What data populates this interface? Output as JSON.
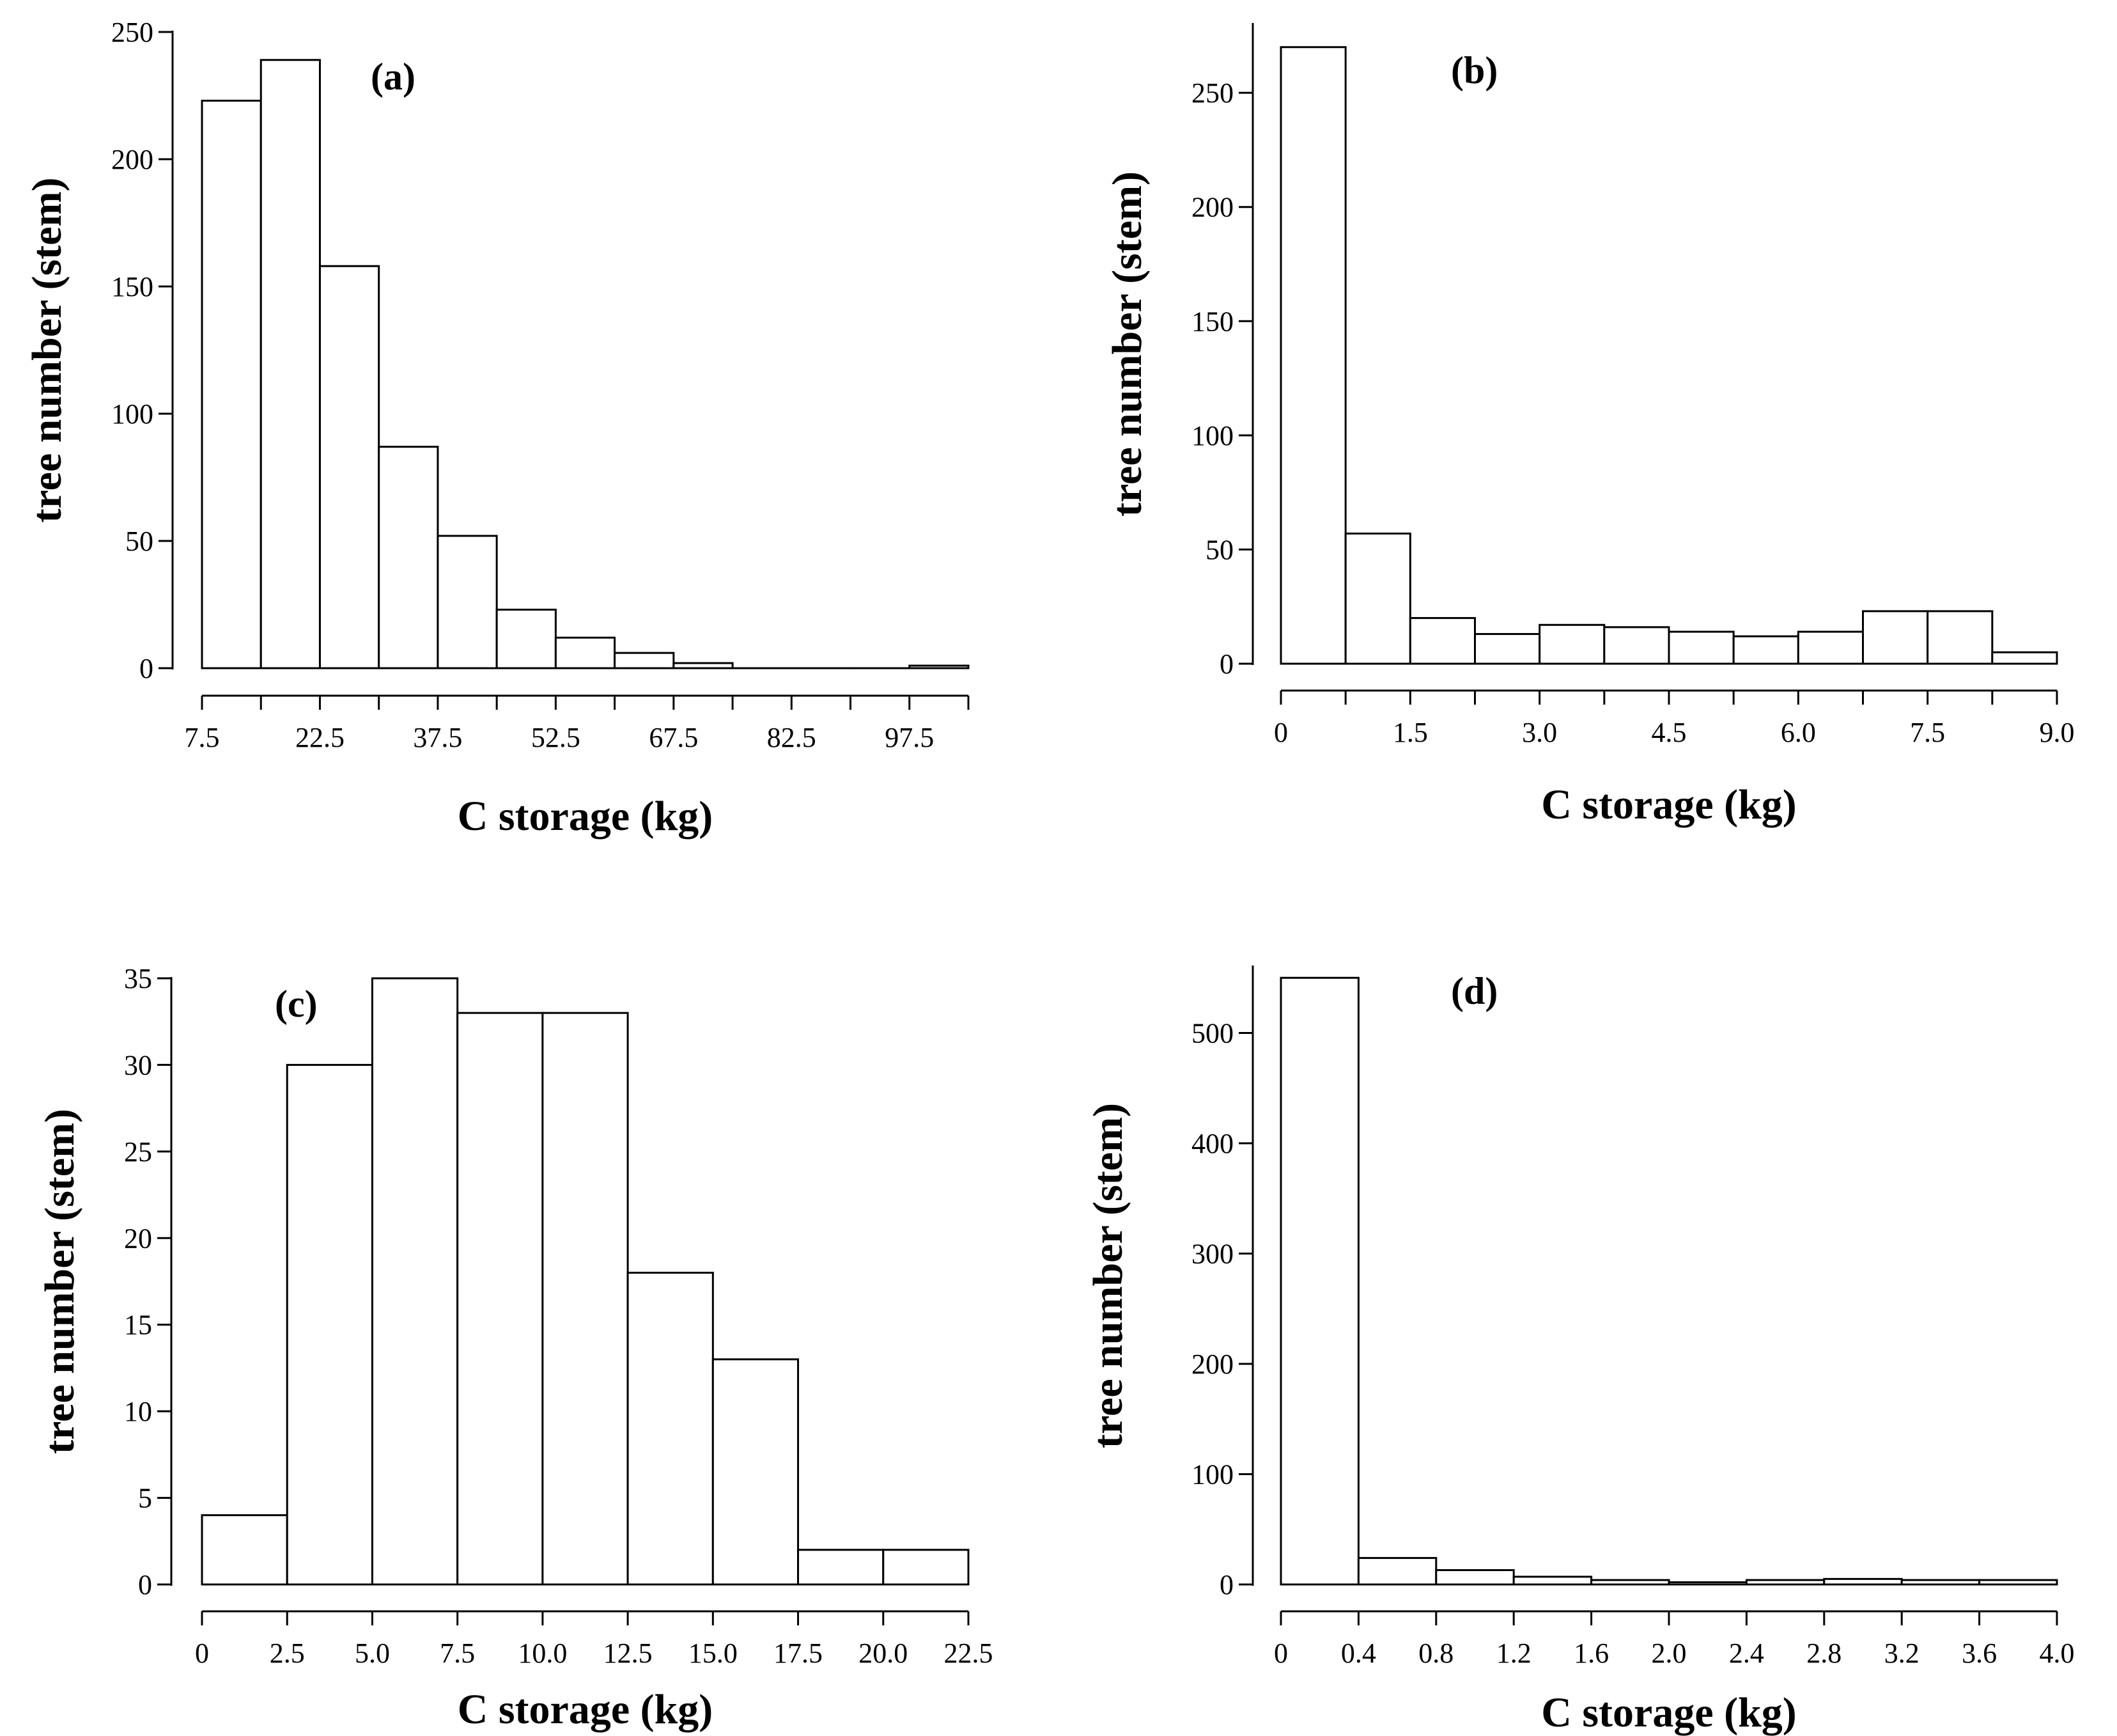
{
  "chart_data": [
    {
      "type": "bar",
      "panel_label": "(a)",
      "xlabel": "C storage (kg)",
      "ylabel": "tree number (stem)",
      "bin_edges": [
        7.5,
        15,
        22.5,
        30,
        37.5,
        45,
        52.5,
        60,
        67.5,
        75,
        82.5,
        90,
        97.5,
        105
      ],
      "values": [
        223,
        239,
        158,
        87,
        52,
        23,
        12,
        6,
        2,
        0,
        0,
        0,
        1
      ],
      "xlim": [
        7.5,
        105
      ],
      "ylim": [
        0,
        250
      ],
      "xticks": [
        7.5,
        22.5,
        37.5,
        52.5,
        67.5,
        82.5,
        97.5
      ],
      "xtick_labels": [
        "7.5",
        "22.5",
        "37.5",
        "52.5",
        "67.5",
        "82.5",
        "97.5"
      ],
      "yticks": [
        0,
        50,
        100,
        150,
        200,
        250
      ],
      "ytick_labels": [
        "0",
        "50",
        "100",
        "150",
        "200",
        "250"
      ]
    },
    {
      "type": "bar",
      "panel_label": "(b)",
      "xlabel": "C storage (kg)",
      "ylabel": "tree number (stem)",
      "bin_edges": [
        0,
        0.75,
        1.5,
        2.25,
        3.0,
        3.75,
        4.5,
        5.25,
        6.0,
        6.75,
        7.5,
        8.25,
        9.0
      ],
      "values": [
        270,
        57,
        20,
        13,
        17,
        16,
        14,
        12,
        14,
        23,
        23,
        5
      ],
      "xlim": [
        0,
        9.0
      ],
      "ylim": [
        0,
        280
      ],
      "xticks": [
        0,
        1.5,
        3.0,
        4.5,
        6.0,
        7.5,
        9.0
      ],
      "xtick_labels": [
        "0",
        "1.5",
        "3.0",
        "4.5",
        "6.0",
        "7.5",
        "9.0"
      ],
      "yticks": [
        0,
        50,
        100,
        150,
        200,
        250
      ],
      "ytick_labels": [
        "0",
        "50",
        "100",
        "150",
        "200",
        "250"
      ]
    },
    {
      "type": "bar",
      "panel_label": "(c)",
      "xlabel": "C storage (kg)",
      "ylabel": "tree number (stem)",
      "bin_edges": [
        0,
        2.5,
        5.0,
        7.5,
        10.0,
        12.5,
        15.0,
        17.5,
        20.0,
        22.5
      ],
      "values": [
        4,
        30,
        35,
        33,
        33,
        18,
        13,
        2,
        2
      ],
      "xlim": [
        0,
        22.5
      ],
      "ylim": [
        0,
        35
      ],
      "xticks": [
        0,
        2.5,
        5.0,
        7.5,
        10.0,
        12.5,
        15.0,
        17.5,
        20.0,
        22.5
      ],
      "xtick_labels": [
        "0",
        "2.5",
        "5.0",
        "7.5",
        "10.0",
        "12.5",
        "15.0",
        "17.5",
        "20.0",
        "22.5"
      ],
      "yticks": [
        0,
        5,
        10,
        15,
        20,
        25,
        30,
        35
      ],
      "ytick_labels": [
        "0",
        "5",
        "10",
        "15",
        "20",
        "25",
        "30",
        "35"
      ]
    },
    {
      "type": "bar",
      "panel_label": "(d)",
      "xlabel": "C storage (kg)",
      "ylabel": "tree number (stem)",
      "bin_edges": [
        0,
        0.4,
        0.8,
        1.2,
        1.6,
        2.0,
        2.4,
        2.8,
        3.2,
        3.6,
        4.0
      ],
      "values": [
        550,
        24,
        13,
        7,
        4,
        2,
        4,
        5,
        4,
        4
      ],
      "xlim": [
        0,
        4.0
      ],
      "ylim": [
        0,
        560
      ],
      "xticks": [
        0,
        0.4,
        0.8,
        1.2,
        1.6,
        2.0,
        2.4,
        2.8,
        3.2,
        3.6,
        4.0
      ],
      "xtick_labels": [
        "0",
        "0.4",
        "0.8",
        "1.2",
        "1.6",
        "2.0",
        "2.4",
        "2.8",
        "3.2",
        "3.6",
        "4.0"
      ],
      "yticks": [
        0,
        100,
        200,
        300,
        400,
        500
      ],
      "ytick_labels": [
        "0",
        "100",
        "200",
        "300",
        "400",
        "500"
      ]
    }
  ]
}
